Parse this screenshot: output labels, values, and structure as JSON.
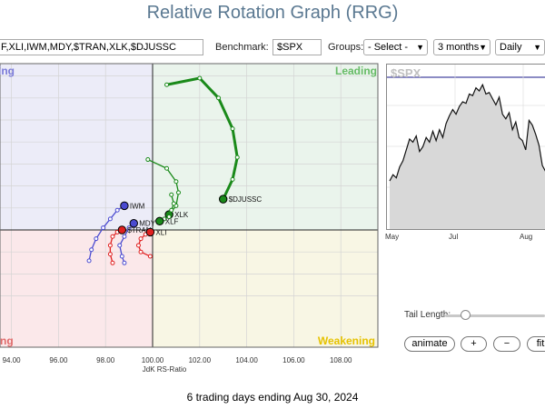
{
  "title": "Relative Rotation Graph (RRG)",
  "toolbar": {
    "symbols_value": "F,XLI,IWM,MDY,$TRAN,XLK,$DJUSSC",
    "benchmark_label": "Benchmark:",
    "benchmark_value": "$SPX",
    "groups_label": "Groups:",
    "groups_value": "- Select -",
    "period_value": "3 months",
    "frequency_value": "Daily"
  },
  "quadrants": {
    "leading": "Leading",
    "weakening": "Weakening",
    "improving": "Improving",
    "lagging": "Lagging"
  },
  "chart_data": {
    "type": "scatter",
    "xlabel": "JdK RS-Ratio",
    "ylabel": "",
    "x_ticks": [
      "94.00",
      "96.00",
      "98.00",
      "100.00",
      "102.00",
      "104.00",
      "106.00",
      "108.00"
    ],
    "xlim": [
      93.6,
      108.8
    ],
    "ylim": [
      96.2,
      107.6
    ],
    "center": [
      100,
      100
    ],
    "series": [
      {
        "name": "$DJUSSC",
        "color": "#1a8a1a",
        "points": [
          [
            100.6,
            106.6
          ],
          [
            102.0,
            106.9
          ],
          [
            102.8,
            106.0
          ],
          [
            103.4,
            104.6
          ],
          [
            103.6,
            103.3
          ],
          [
            103.4,
            102.3
          ],
          [
            103.0,
            101.4
          ]
        ]
      },
      {
        "name": "XLK",
        "color": "#1a8a1a",
        "points": [
          [
            99.8,
            103.2
          ],
          [
            100.6,
            102.8
          ],
          [
            101.0,
            102.2
          ],
          [
            101.1,
            101.7
          ],
          [
            101.0,
            101.1
          ],
          [
            100.7,
            100.7
          ]
        ]
      },
      {
        "name": "XLF",
        "color": "#1a8a1a",
        "points": [
          [
            100.8,
            101.6
          ],
          [
            100.9,
            101.2
          ],
          [
            100.8,
            100.9
          ],
          [
            100.7,
            100.6
          ],
          [
            100.5,
            100.5
          ],
          [
            100.3,
            100.4
          ]
        ]
      },
      {
        "name": "IWM",
        "color": "#4a4ad0",
        "points": [
          [
            97.3,
            98.6
          ],
          [
            97.4,
            99.1
          ],
          [
            97.6,
            99.6
          ],
          [
            97.9,
            100.1
          ],
          [
            98.2,
            100.5
          ],
          [
            98.5,
            100.9
          ],
          [
            98.8,
            101.1
          ]
        ]
      },
      {
        "name": "MDY",
        "color": "#4a4ad0",
        "points": [
          [
            98.8,
            98.5
          ],
          [
            98.7,
            98.8
          ],
          [
            98.6,
            99.3
          ],
          [
            98.8,
            99.7
          ],
          [
            99.0,
            100.1
          ],
          [
            99.2,
            100.3
          ]
        ]
      },
      {
        "name": "$TRAN",
        "color": "#e02020",
        "points": [
          [
            98.3,
            98.5
          ],
          [
            98.2,
            98.9
          ],
          [
            98.2,
            99.3
          ],
          [
            98.3,
            99.7
          ],
          [
            98.5,
            99.9
          ],
          [
            98.7,
            100.0
          ]
        ]
      },
      {
        "name": "XLI",
        "color": "#e02020",
        "points": [
          [
            99.9,
            98.8
          ],
          [
            99.5,
            99.0
          ],
          [
            99.4,
            99.3
          ],
          [
            99.5,
            99.6
          ],
          [
            99.7,
            99.8
          ],
          [
            99.9,
            99.9
          ]
        ]
      }
    ]
  },
  "spx": {
    "title": "$SPX",
    "months": [
      "May",
      "Jul",
      "Aug"
    ],
    "values": [
      5020,
      5060,
      5040,
      5110,
      5150,
      5220,
      5290,
      5270,
      5310,
      5210,
      5240,
      5300,
      5270,
      5340,
      5280,
      5350,
      5300,
      5390,
      5440,
      5480,
      5450,
      5500,
      5530,
      5520,
      5580,
      5570,
      5620,
      5600,
      5640,
      5580,
      5590,
      5550,
      5510,
      5560,
      5450,
      5420,
      5460,
      5350,
      5400,
      5300,
      5280,
      5220,
      5410,
      5380,
      5320,
      5250,
      5120,
      5080,
      5180,
      5210
    ],
    "ymin": 4950,
    "ymax": 5700
  },
  "tail": {
    "label": "Tail Length:",
    "fraction": 0.12
  },
  "buttons": {
    "animate": "animate",
    "plus": "+",
    "minus": "−",
    "fit": "fit"
  },
  "footer": "6 trading days ending Aug 30, 2024"
}
